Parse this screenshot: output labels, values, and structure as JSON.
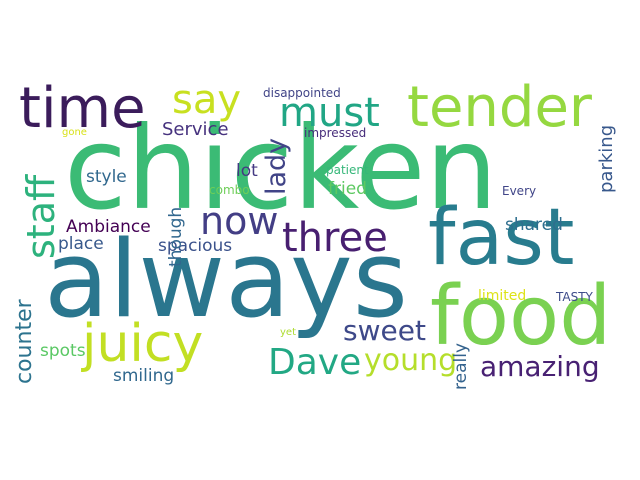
{
  "words": {
    "chicken": {
      "text": "chicken",
      "color": "#3bbb75"
    },
    "always": {
      "text": "always",
      "color": "#2a768e"
    },
    "food": {
      "text": "food",
      "color": "#7ad151"
    },
    "fast": {
      "text": "fast",
      "color": "#287c8e"
    },
    "tender": {
      "text": "tender",
      "color": "#95d840"
    },
    "time": {
      "text": "time",
      "color": "#3b1c5b"
    },
    "juicy": {
      "text": "juicy",
      "color": "#c2df23"
    },
    "three": {
      "text": "three",
      "color": "#481f70"
    },
    "now": {
      "text": "now",
      "color": "#433e85"
    },
    "say": {
      "text": "say",
      "color": "#c8e020"
    },
    "must": {
      "text": "must",
      "color": "#21a685"
    },
    "staff": {
      "text": "staff",
      "color": "#2db27d"
    },
    "Dave": {
      "text": "Dave",
      "color": "#22a884"
    },
    "young": {
      "text": "young",
      "color": "#b5de2b"
    },
    "amazing": {
      "text": "amazing",
      "color": "#482173"
    },
    "sweet": {
      "text": "sweet",
      "color": "#3e4989"
    },
    "counter": {
      "text": "counter",
      "color": "#2c738e"
    },
    "lady": {
      "text": "lady",
      "color": "#414487"
    },
    "Service": {
      "text": "Service",
      "color": "#46327e"
    },
    "Ambiance": {
      "text": "Ambiance",
      "color": "#440154"
    },
    "place": {
      "text": "place",
      "color": "#38598c"
    },
    "spacious": {
      "text": "spacious",
      "color": "#3b528b"
    },
    "shared": {
      "text": "shared",
      "color": "#2e6e8e"
    },
    "style": {
      "text": "style",
      "color": "#31688e"
    },
    "fried": {
      "text": "fried",
      "color": "#5ec962"
    },
    "parking": {
      "text": "parking",
      "color": "#38588c"
    },
    "spots": {
      "text": "spots",
      "color": "#5ac864"
    },
    "smiling": {
      "text": "smiling",
      "color": "#31688e"
    },
    "though": {
      "text": "though",
      "color": "#31678e"
    },
    "lot": {
      "text": "lot",
      "color": "#443983"
    },
    "really": {
      "text": "really",
      "color": "#33628d"
    },
    "limited": {
      "text": "limited",
      "color": "#dde318"
    },
    "TASTY": {
      "text": "TASTY",
      "color": "#3e4c8a"
    },
    "disappointed": {
      "text": "disappointed",
      "color": "#414487"
    },
    "impressed": {
      "text": "impressed",
      "color": "#472d7b"
    },
    "patient": {
      "text": "patient",
      "color": "#35b779"
    },
    "combo": {
      "text": "combo",
      "color": "#6ece58"
    },
    "Every": {
      "text": "Every",
      "color": "#404588"
    },
    "gone": {
      "text": "gone",
      "color": "#d8e219"
    },
    "yet": {
      "text": "yet",
      "color": "#addc30"
    }
  }
}
